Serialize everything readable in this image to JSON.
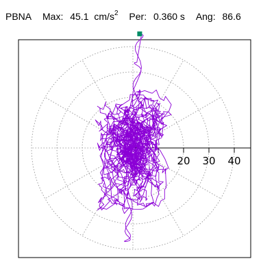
{
  "header": {
    "station": "PBNA",
    "max_label": "Max:",
    "max_value": "45.1",
    "max_unit": "cm/s",
    "max_unit_exp": "2",
    "per_label": "Per:",
    "per_value": "0.360 s",
    "ang_label": "Ang:",
    "ang_value": "86.6"
  },
  "chart_data": {
    "type": "polar-orbit",
    "title": "PBNA  Max: 45.1 cm/s^2  Per: 0.360 s  Ang: 86.6",
    "radial_ticks": [
      10,
      20,
      30,
      40
    ],
    "radial_tick_labels": [
      "20",
      "30",
      "40"
    ],
    "max_amplitude": 45.1,
    "peak_angle_deg": 86.6,
    "period_s": 0.36,
    "guide_angles_deg": [
      0,
      30,
      60,
      90,
      120,
      150,
      180,
      210,
      240,
      270,
      300,
      330
    ],
    "colors": {
      "trace": "#8b00d6",
      "marker": "#008c66",
      "grid": "#888888",
      "axis": "#000000"
    }
  }
}
